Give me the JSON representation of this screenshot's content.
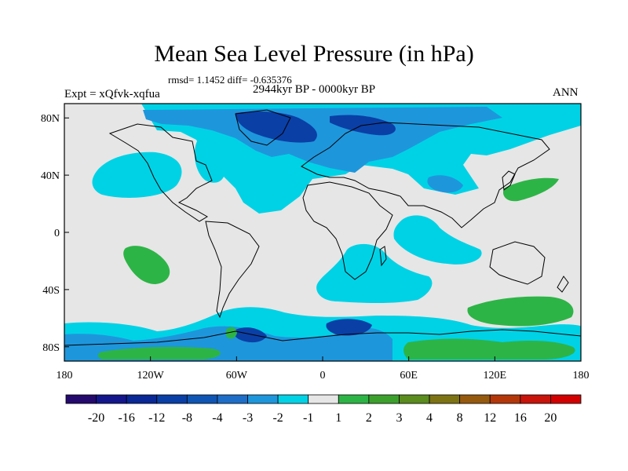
{
  "title": "Mean Sea Level Pressure (in hPa)",
  "stats": "rmsd= 1.1452 diff= -0.635376",
  "experiment": "Expt = xQfvk-xqfua",
  "period": "2944kyr BP - 0000kyr BP",
  "season": "ANN",
  "axes": {
    "x_ticks": [
      "180",
      "120W",
      "60W",
      "0",
      "60E",
      "120E",
      "180"
    ],
    "y_ticks": [
      "80N",
      "40N",
      "0",
      "40S",
      "80S"
    ]
  },
  "colorbar": {
    "labels": [
      "-20",
      "-16",
      "-12",
      "-8",
      "-4",
      "-3",
      "-2",
      "-1",
      "1",
      "2",
      "3",
      "4",
      "8",
      "12",
      "16",
      "20"
    ],
    "colors": [
      "#250a6e",
      "#14178c",
      "#0a2896",
      "#0a3fa6",
      "#0f55b4",
      "#1e6ec8",
      "#1e96dc",
      "#00d2e6",
      "#e6e6e6",
      "#2db446",
      "#3ca02d",
      "#5a8c1e",
      "#7d7314",
      "#965a0f",
      "#b4370a",
      "#c8140a",
      "#d20000"
    ]
  },
  "colors": {
    "background": "#e6e6e6",
    "land_outline": "#000000",
    "neg_dark": "#0a3fa6",
    "neg_mid": "#1e96dc",
    "neg_light": "#00d2e6",
    "pos_green": "#2db446"
  }
}
